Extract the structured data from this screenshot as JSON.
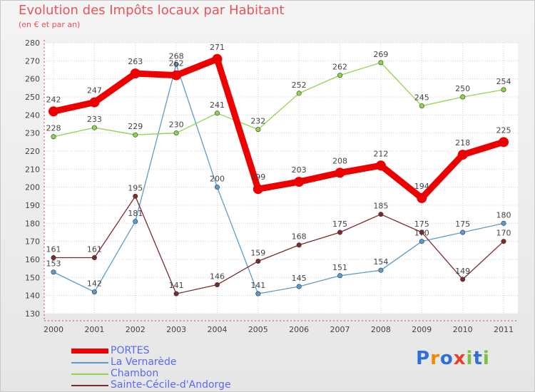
{
  "chart_data": {
    "type": "line",
    "title": "Evolution des Impôts locaux par Habitant",
    "subtitle": "(en € et par an)",
    "xlabel": "",
    "ylabel": "",
    "categories": [
      "2000",
      "2001",
      "2002",
      "2003",
      "2004",
      "2005",
      "2006",
      "2007",
      "2008",
      "2009",
      "2010",
      "2011"
    ],
    "ylim": [
      130,
      280
    ],
    "yticks": [
      130,
      140,
      150,
      160,
      170,
      180,
      190,
      200,
      210,
      220,
      230,
      240,
      250,
      260,
      270,
      280
    ],
    "grid": true,
    "legend_position": "bottom-left",
    "series": [
      {
        "name": "PORTES",
        "color": "#ee0000",
        "values": [
          242,
          247,
          263,
          262,
          271,
          199,
          203,
          208,
          212,
          194,
          218,
          225
        ]
      },
      {
        "name": "La Vernarède",
        "color": "#5b9bd0",
        "values": [
          153,
          142,
          181,
          268,
          200,
          141,
          145,
          151,
          154,
          170,
          175,
          180
        ]
      },
      {
        "name": "Chambon",
        "color": "#8fd54b",
        "values": [
          228,
          233,
          229,
          230,
          241,
          232,
          252,
          262,
          269,
          245,
          250,
          254
        ]
      },
      {
        "name": "Sainte-Cécile-d'Andorge",
        "color": "#7b2b2b",
        "values": [
          161,
          161,
          195,
          141,
          146,
          159,
          168,
          175,
          185,
          175,
          149,
          170
        ]
      }
    ]
  },
  "logo": {
    "letters": [
      {
        "ch": "P",
        "color": "#2f6fd8"
      },
      {
        "ch": "r",
        "color": "#f08a00"
      },
      {
        "ch": "o",
        "color": "#2f6fd8"
      },
      {
        "ch": "x",
        "color": "#e8402a"
      },
      {
        "ch": "i",
        "color": "#7ac143"
      },
      {
        "ch": "t",
        "color": "#2f6fd8"
      },
      {
        "ch": "i",
        "color": "#7ac143"
      }
    ]
  }
}
